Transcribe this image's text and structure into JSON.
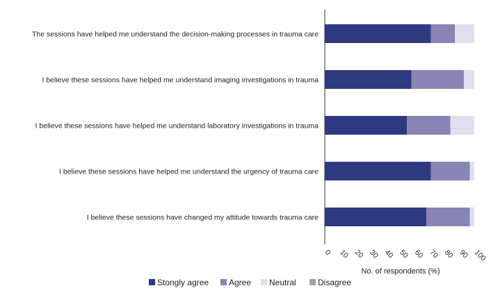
{
  "chart_data": {
    "type": "bar",
    "orientation": "horizontal",
    "stacked": true,
    "categories": [
      "The sessions have helped me understand the decision-making processes in trauma care",
      "I believe these sessions have helped me understand imaging investigations in trauma",
      "I believe these sessions have helped me understand laboratory investigations in trauma",
      "I believe these sessions have helped me understand the urgency of trauma care",
      "I believe these sessions have changed my attitude towards trauma care"
    ],
    "series": [
      {
        "name": "Stongly agree",
        "color": "#2e3a80",
        "values": [
          71,
          58,
          55,
          71,
          68
        ]
      },
      {
        "name": "Agree",
        "color": "#8884b4",
        "values": [
          16,
          35,
          29,
          26,
          29
        ]
      },
      {
        "name": "Neutral",
        "color": "#e0dfee",
        "values": [
          13,
          7,
          16,
          3,
          3
        ]
      },
      {
        "name": "Disagree",
        "color": "#a0a0a0",
        "values": [
          0,
          0,
          0,
          0,
          0
        ]
      }
    ],
    "xlabel": "No. of respondents (%)",
    "ylabel": "",
    "xlim": [
      0,
      100
    ],
    "xticks": [
      "0",
      "10",
      "20",
      "30",
      "40",
      "50",
      "60",
      "70",
      "80",
      "90",
      "100"
    ],
    "grid": false,
    "legend_position": "bottom"
  }
}
